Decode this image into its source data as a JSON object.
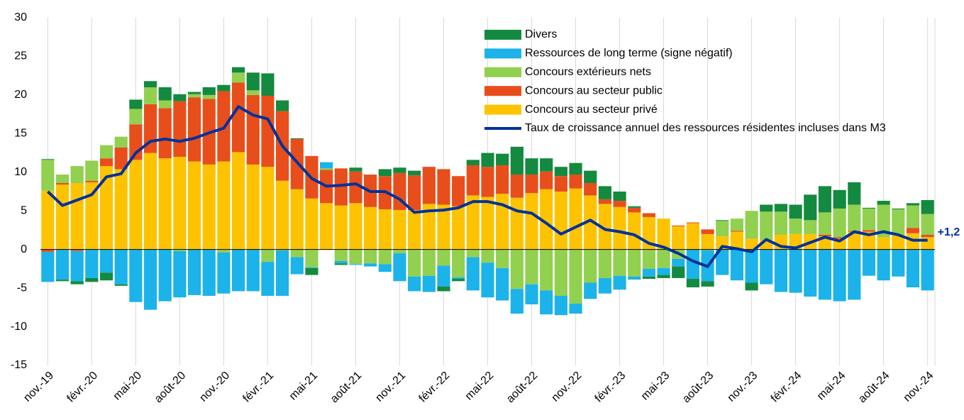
{
  "chart_data": {
    "type": "bar",
    "stacked": true,
    "grid": true,
    "legend": "top-right",
    "categories": [
      "nov.-19",
      null,
      null,
      "févr.-20",
      null,
      null,
      "mai-20",
      null,
      null,
      "août-20",
      null,
      null,
      "nov.-20",
      null,
      null,
      "févr.-21",
      null,
      null,
      "mai-21",
      null,
      null,
      "août-21",
      null,
      null,
      "nov.-21",
      null,
      null,
      "févr.-22",
      null,
      null,
      "mai-22",
      null,
      null,
      "août-22",
      null,
      null,
      "nov.-22",
      null,
      null,
      "févr.-23",
      null,
      null,
      "mai-23",
      null,
      null,
      "août-23",
      null,
      null,
      "nov.-23",
      null,
      null,
      "févr.-24",
      null,
      null,
      "mai-24",
      null,
      null,
      "août-24",
      null,
      null,
      "nov.-24"
    ],
    "ylim": [
      -15,
      30
    ],
    "yticks": [
      -15,
      -10,
      -5,
      0,
      5,
      10,
      15,
      20,
      25,
      30
    ],
    "series": [
      {
        "name": "Concours au secteur privé",
        "type": "bar",
        "color": "#fdc300",
        "values": [
          7.6,
          8.4,
          8.6,
          8.7,
          10.8,
          10.4,
          11.6,
          12.5,
          11.8,
          12.0,
          11.4,
          11.0,
          11.4,
          12.6,
          11.0,
          10.7,
          8.9,
          7.8,
          6.6,
          6.0,
          5.7,
          6.0,
          5.5,
          5.2,
          5.1,
          5.1,
          5.9,
          5.8,
          5.6,
          7.0,
          6.8,
          7.2,
          6.7,
          7.3,
          7.8,
          7.5,
          7.9,
          7.0,
          5.9,
          5.5,
          4.8,
          4.2,
          4.0,
          3.0,
          3.4,
          2.0,
          1.7,
          2.3,
          1.4,
          1.2,
          1.9,
          2.0,
          2.0,
          1.7,
          1.4,
          2.3,
          2.3,
          1.6,
          1.9,
          2.1,
          1.6
        ]
      },
      {
        "name": "Concours au secteur public",
        "type": "bar",
        "color": "#e84e1b",
        "values": [
          -0.3,
          0.2,
          -0.2,
          0.2,
          1.0,
          2.8,
          4.6,
          6.3,
          6.5,
          7.2,
          8.3,
          8.5,
          9.1,
          9.0,
          9.0,
          9.2,
          9.0,
          6.5,
          5.5,
          4.3,
          4.8,
          4.1,
          4.2,
          4.3,
          4.8,
          4.5,
          4.8,
          4.6,
          3.9,
          3.9,
          3.9,
          3.7,
          3.0,
          2.4,
          2.3,
          2.0,
          1.8,
          1.6,
          0.6,
          0.8,
          0.6,
          0.5,
          0.0,
          0.1,
          0.1,
          0.6,
          0.0,
          0.1,
          0.0,
          0.0,
          0.0,
          0.0,
          0.0,
          0.2,
          0.2,
          0.1,
          0.2,
          0.0,
          0.0,
          0.7,
          0.3
        ]
      },
      {
        "name": "Concours extérieurs nets",
        "type": "bar",
        "color": "#92d050",
        "values": [
          4.0,
          1.1,
          2.2,
          2.6,
          1.7,
          1.4,
          2.0,
          2.2,
          1.0,
          -0.2,
          0.4,
          0.5,
          -0.4,
          1.3,
          0.6,
          -1.6,
          -0.1,
          -1.0,
          -2.3,
          0.2,
          -1.5,
          -1.9,
          -1.8,
          -1.9,
          -0.5,
          -3.5,
          -3.4,
          -2.1,
          -3.6,
          -1.0,
          -1.7,
          -2.4,
          -5.1,
          -4.5,
          -5.3,
          -6.0,
          -7.0,
          -4.3,
          -3.7,
          -3.4,
          -3.5,
          -2.5,
          -2.4,
          -1.2,
          0.0,
          -0.1,
          2.0,
          1.6,
          3.6,
          3.7,
          3.0,
          2.0,
          1.8,
          2.9,
          3.7,
          3.4,
          2.8,
          4.2,
          3.3,
          2.9,
          2.7
        ]
      },
      {
        "name": "Ressources de long terme (signe négatif)",
        "type": "bar",
        "color": "#1bb3ea",
        "values": [
          -3.9,
          -3.9,
          -3.9,
          -3.7,
          -3.0,
          -4.5,
          -6.8,
          -7.8,
          -6.7,
          -6.0,
          -5.9,
          -6.0,
          -5.3,
          -5.4,
          -5.4,
          -4.4,
          -5.9,
          -2.2,
          -0.1,
          0.8,
          -0.3,
          -0.1,
          -0.4,
          -1.0,
          -3.6,
          -1.9,
          -2.1,
          -2.7,
          -0.2,
          -4.3,
          -4.5,
          -4.2,
          -3.2,
          -2.6,
          -3.1,
          -2.5,
          -1.3,
          -2.1,
          -2.0,
          -1.8,
          -0.4,
          -1.0,
          -0.9,
          -1.0,
          -3.8,
          -4.0,
          -3.3,
          -4.0,
          -4.3,
          -4.5,
          -5.5,
          -5.6,
          -6.1,
          -6.5,
          -6.7,
          -6.5,
          -3.4,
          -4.0,
          -3.5,
          -4.9,
          -5.3
        ]
      },
      {
        "name": "Divers",
        "type": "bar",
        "color": "#138a3f",
        "values": [
          0.1,
          -0.2,
          -0.4,
          -0.5,
          -1.0,
          -0.2,
          1.2,
          0.8,
          1.7,
          0.9,
          0.3,
          1.0,
          0.8,
          0.7,
          2.3,
          2.9,
          1.4,
          0.1,
          -0.9,
          0.0,
          -0.2,
          0.5,
          0.0,
          0.9,
          0.7,
          0.6,
          0.0,
          -0.6,
          -0.3,
          0.7,
          1.8,
          1.5,
          3.6,
          2.1,
          1.7,
          1.2,
          1.5,
          1.6,
          1.7,
          1.2,
          0.2,
          -0.3,
          -0.4,
          -1.5,
          -1.1,
          -0.7,
          0.1,
          0.0,
          -1.0,
          0.9,
          1.0,
          1.8,
          3.3,
          3.4,
          2.4,
          2.9,
          0.1,
          0.5,
          0.1,
          0.3,
          1.8
        ]
      },
      {
        "name": "Taux de croissance annuel des ressources résidentes incluses dans M3",
        "type": "line",
        "color": "#003299",
        "values": [
          7.5,
          5.7,
          6.4,
          7.1,
          9.4,
          9.8,
          12.5,
          14.0,
          14.3,
          14.0,
          14.4,
          15.1,
          15.7,
          18.5,
          17.4,
          16.9,
          13.4,
          11.3,
          9.2,
          8.2,
          8.3,
          8.5,
          7.5,
          7.5,
          6.5,
          4.8,
          5.0,
          5.1,
          5.4,
          6.2,
          6.2,
          5.8,
          5.0,
          4.7,
          3.4,
          2.0,
          2.9,
          3.8,
          2.6,
          2.3,
          1.9,
          0.8,
          0.3,
          -0.5,
          -1.5,
          -2.2,
          0.4,
          0.1,
          -0.3,
          1.3,
          0.4,
          0.2,
          0.9,
          1.6,
          1.1,
          2.3,
          1.9,
          2.3,
          1.9,
          1.2,
          1.2
        ],
        "end_label": "+1,2"
      }
    ]
  }
}
